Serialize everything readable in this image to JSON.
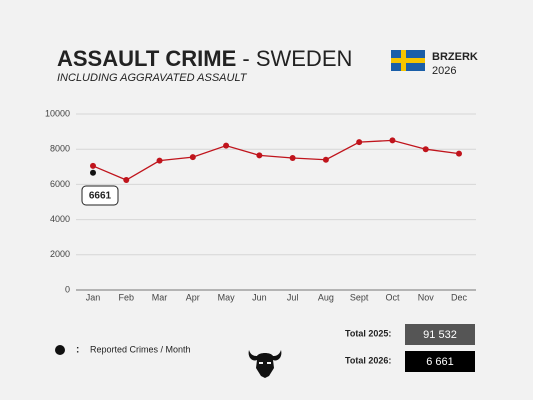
{
  "chart_data": {
    "type": "line",
    "title": "ASSAULT CRIME",
    "title_suffix": " - SWEDEN",
    "subtitle": "INCLUDING AGGRAVATED ASSAULT",
    "brand": "BRZERK",
    "year": "2026",
    "categories": [
      "Jan",
      "Feb",
      "Mar",
      "Apr",
      "May",
      "Jun",
      "Jul",
      "Aug",
      "Sept",
      "Oct",
      "Nov",
      "Dec"
    ],
    "series": [
      {
        "color": "#c0141c",
        "values": [
          7050,
          6250,
          7350,
          7550,
          8200,
          7650,
          7500,
          7400,
          8400,
          8500,
          8000,
          7750
        ]
      },
      {
        "color": "#111111",
        "values": [
          6661,
          null,
          null,
          null,
          null,
          null,
          null,
          null,
          null,
          null,
          null,
          null
        ]
      }
    ],
    "ylim": [
      0,
      10000
    ],
    "yticks": [
      0,
      2000,
      4000,
      6000,
      8000,
      10000
    ],
    "grid": true,
    "callout": {
      "series": 1,
      "index": 0,
      "text": "6661"
    },
    "legend": {
      "separator": ":",
      "label": "Reported Crimes / Month"
    },
    "totals": [
      {
        "label": "Total 2025:",
        "value": "91 532",
        "color": "#555555"
      },
      {
        "label": "Total 2026:",
        "value": "6 661",
        "color": "#000000"
      }
    ]
  }
}
